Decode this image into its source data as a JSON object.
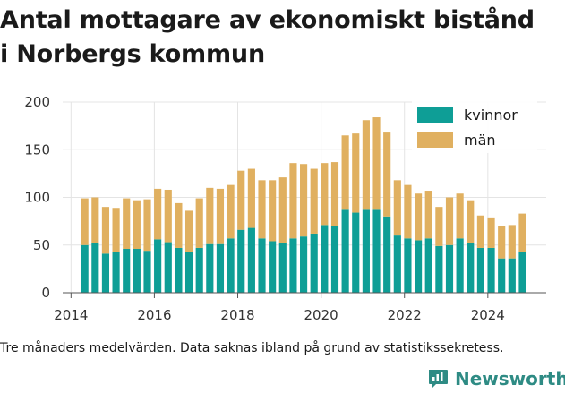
{
  "title": {
    "line1": "Antal mottagare av ekonomiskt bistånd",
    "line2": "i Norbergs kommun"
  },
  "footnote": "Tre månaders medelvärden. Data saknas ibland på grund av statistikssekretess.",
  "brand": {
    "name": "Newsworthy",
    "icon": "newsworthy-logo-icon",
    "color": "#2e8b84"
  },
  "chart_data": {
    "type": "bar",
    "stacked": true,
    "grid": true,
    "legend_position": "top-right",
    "xlim": [
      2013.8,
      2025.4
    ],
    "ylim": [
      0,
      200
    ],
    "xticks": [
      {
        "value": 2014,
        "label": "2014"
      },
      {
        "value": 2016,
        "label": "2016"
      },
      {
        "value": 2018,
        "label": "2018"
      },
      {
        "value": 2020,
        "label": "2020"
      },
      {
        "value": 2022,
        "label": "2022"
      },
      {
        "value": 2024,
        "label": "2024"
      }
    ],
    "yticks": [
      {
        "value": 0,
        "label": "0"
      },
      {
        "value": 50,
        "label": "50"
      },
      {
        "value": 100,
        "label": "100"
      },
      {
        "value": 150,
        "label": "150"
      },
      {
        "value": 200,
        "label": "200"
      }
    ],
    "x": [
      2014.33,
      2014.58,
      2014.83,
      2015.08,
      2015.33,
      2015.58,
      2015.83,
      2016.08,
      2016.33,
      2016.58,
      2016.83,
      2017.08,
      2017.33,
      2017.58,
      2017.83,
      2018.08,
      2018.33,
      2018.58,
      2018.83,
      2019.08,
      2019.33,
      2019.58,
      2019.83,
      2020.08,
      2020.33,
      2020.58,
      2020.83,
      2021.08,
      2021.33,
      2021.58,
      2021.83,
      2022.08,
      2022.33,
      2022.58,
      2022.83,
      2023.08,
      2023.33,
      2023.58,
      2023.83,
      2024.08,
      2024.33,
      2024.58,
      2024.83
    ],
    "series": [
      {
        "name": "kvinnor",
        "color": "#0e9e96",
        "values": [
          50,
          52,
          41,
          43,
          46,
          46,
          44,
          56,
          53,
          47,
          43,
          47,
          51,
          51,
          57,
          66,
          68,
          57,
          54,
          52,
          57,
          59,
          62,
          71,
          70,
          87,
          84,
          87,
          87,
          80,
          60,
          57,
          55,
          57,
          49,
          50,
          57,
          52,
          47,
          47,
          36,
          36,
          43
        ]
      },
      {
        "name": "män",
        "color": "#e0b060",
        "values": [
          49,
          48,
          49,
          46,
          53,
          51,
          54,
          53,
          55,
          47,
          43,
          52,
          59,
          58,
          56,
          62,
          62,
          61,
          64,
          69,
          79,
          76,
          68,
          65,
          67,
          78,
          83,
          94,
          97,
          88,
          58,
          56,
          49,
          50,
          41,
          50,
          47,
          45,
          34,
          32,
          34,
          35,
          40
        ]
      }
    ]
  }
}
